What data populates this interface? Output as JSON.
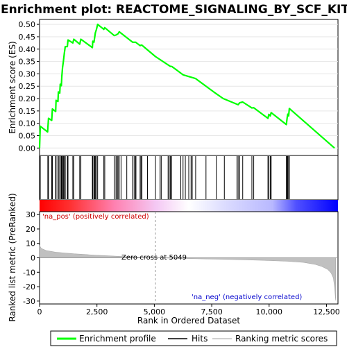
{
  "chart_data": {
    "type": "line",
    "title": "Enrichment plot: REACTOME_SIGNALING_BY_SCF_KIT",
    "panels": {
      "enrichment": {
        "ylabel": "Enrichment score (ES)",
        "ylim": [
          -0.03,
          0.52
        ],
        "yticks": [
          "0.00",
          "0.05",
          "0.10",
          "0.15",
          "0.20",
          "0.25",
          "0.30",
          "0.35",
          "0.40",
          "0.45",
          "0.50"
        ],
        "ytick_values": [
          0,
          0.05,
          0.1,
          0.15,
          0.2,
          0.25,
          0.3,
          0.35,
          0.4,
          0.45,
          0.5
        ]
      },
      "metric": {
        "ylabel": "Ranked list metric (PreRanked)",
        "ylim": [
          -32,
          32
        ],
        "yticks": [
          "30",
          "20",
          "10",
          "0",
          "-10",
          "-20",
          "-30"
        ],
        "ytick_values": [
          30,
          20,
          10,
          0,
          -10,
          -20,
          -30
        ],
        "zero_cross_label": "Zero cross at 5049",
        "zero_cross": 5049,
        "pos_label": "'na_pos' (positively correlated)",
        "neg_label": "'na_neg' (negatively correlated)"
      }
    },
    "xlabel": "Rank in Ordered Dataset",
    "xlim": [
      0,
      13000
    ],
    "xticks": [
      "0",
      "2,500",
      "5,000",
      "7,500",
      "10,000",
      "12,500"
    ],
    "xtick_values": [
      0,
      2500,
      5000,
      7500,
      10000,
      12500
    ],
    "n_genes": 12900,
    "series": [
      {
        "name": "Enrichment profile",
        "color": "#00ff00",
        "points": [
          [
            0,
            0.0
          ],
          [
            30,
            0.088
          ],
          [
            350,
            0.065
          ],
          [
            390,
            0.12
          ],
          [
            530,
            0.112
          ],
          [
            560,
            0.158
          ],
          [
            700,
            0.148
          ],
          [
            720,
            0.193
          ],
          [
            800,
            0.188
          ],
          [
            820,
            0.227
          ],
          [
            880,
            0.222
          ],
          [
            900,
            0.258
          ],
          [
            950,
            0.252
          ],
          [
            970,
            0.29
          ],
          [
            1000,
            0.325
          ],
          [
            1040,
            0.352
          ],
          [
            1080,
            0.383
          ],
          [
            1120,
            0.41
          ],
          [
            1210,
            0.41
          ],
          [
            1240,
            0.437
          ],
          [
            1450,
            0.425
          ],
          [
            1490,
            0.44
          ],
          [
            1750,
            0.42
          ],
          [
            1800,
            0.44
          ],
          [
            2300,
            0.406
          ],
          [
            2320,
            0.432
          ],
          [
            2370,
            0.428
          ],
          [
            2400,
            0.447
          ],
          [
            2430,
            0.466
          ],
          [
            2480,
            0.48
          ],
          [
            2530,
            0.5
          ],
          [
            2800,
            0.48
          ],
          [
            2840,
            0.487
          ],
          [
            3250,
            0.455
          ],
          [
            3330,
            0.457
          ],
          [
            3380,
            0.46
          ],
          [
            3420,
            0.462
          ],
          [
            3470,
            0.47
          ],
          [
            4050,
            0.428
          ],
          [
            4120,
            0.428
          ],
          [
            4180,
            0.428
          ],
          [
            4380,
            0.414
          ],
          [
            4420,
            0.416
          ],
          [
            4460,
            0.416
          ],
          [
            5050,
            0.37
          ],
          [
            5700,
            0.33
          ],
          [
            5760,
            0.33
          ],
          [
            6250,
            0.296
          ],
          [
            6800,
            0.281
          ],
          [
            7600,
            0.226
          ],
          [
            8000,
            0.2
          ],
          [
            8650,
            0.175
          ],
          [
            8720,
            0.183
          ],
          [
            8850,
            0.186
          ],
          [
            9250,
            0.162
          ],
          [
            9330,
            0.163
          ],
          [
            9950,
            0.12
          ],
          [
            9990,
            0.136
          ],
          [
            10050,
            0.13
          ],
          [
            10090,
            0.143
          ],
          [
            10750,
            0.095
          ],
          [
            10790,
            0.125
          ],
          [
            10810,
            0.137
          ],
          [
            10850,
            0.13
          ],
          [
            10880,
            0.16
          ],
          [
            12850,
            0.0
          ]
        ]
      },
      {
        "name": "Hits",
        "color": "#000000",
        "positions": [
          30,
          360,
          390,
          530,
          560,
          700,
          720,
          800,
          820,
          880,
          900,
          950,
          970,
          1000,
          1040,
          1080,
          1120,
          1210,
          1240,
          1450,
          1490,
          1750,
          1800,
          2300,
          2320,
          2370,
          2400,
          2430,
          2480,
          2530,
          2800,
          2840,
          3250,
          3330,
          3380,
          3420,
          3470,
          3550,
          3800,
          4050,
          4120,
          4180,
          4200,
          4380,
          4420,
          4460,
          4700,
          5050,
          5250,
          5300,
          5600,
          5650,
          5700,
          5760,
          6150,
          6250,
          6350,
          6500,
          6600,
          6650,
          6800,
          7250,
          7700,
          8050,
          8600,
          8650,
          8720,
          8850,
          9250,
          9330,
          9950,
          9990,
          10050,
          10090,
          10750,
          10790,
          10810,
          10850,
          10880
        ]
      },
      {
        "name": "Ranking metric scores",
        "color": "#c0c0c0",
        "points": [
          [
            0,
            8.5
          ],
          [
            80,
            6.5
          ],
          [
            300,
            5.0
          ],
          [
            700,
            3.9
          ],
          [
            1500,
            2.8
          ],
          [
            2500,
            1.8
          ],
          [
            3500,
            1.0
          ],
          [
            4300,
            0.5
          ],
          [
            5049,
            0.0
          ],
          [
            6000,
            -0.4
          ],
          [
            7000,
            -0.7
          ],
          [
            8000,
            -1.0
          ],
          [
            9000,
            -1.4
          ],
          [
            10000,
            -1.9
          ],
          [
            10800,
            -2.4
          ],
          [
            11500,
            -3.2
          ],
          [
            12000,
            -4.5
          ],
          [
            12300,
            -6.0
          ],
          [
            12550,
            -8.0
          ],
          [
            12700,
            -10.5
          ],
          [
            12800,
            -14.0
          ],
          [
            12850,
            -20.0
          ],
          [
            12900,
            -29.5
          ]
        ]
      }
    ],
    "legend": [
      "Enrichment profile",
      "Hits",
      "Ranking metric scores"
    ],
    "legend_position": "bottom",
    "colors": {
      "es_line": "#00ff00",
      "hit": "#000000",
      "metric": "#c0c0c0",
      "pos_text": "#cc0000",
      "neg_text": "#0000cc",
      "bar_pos": "#ff0000",
      "bar_mid": "#ffffff",
      "bar_neg": "#0000ff"
    }
  }
}
